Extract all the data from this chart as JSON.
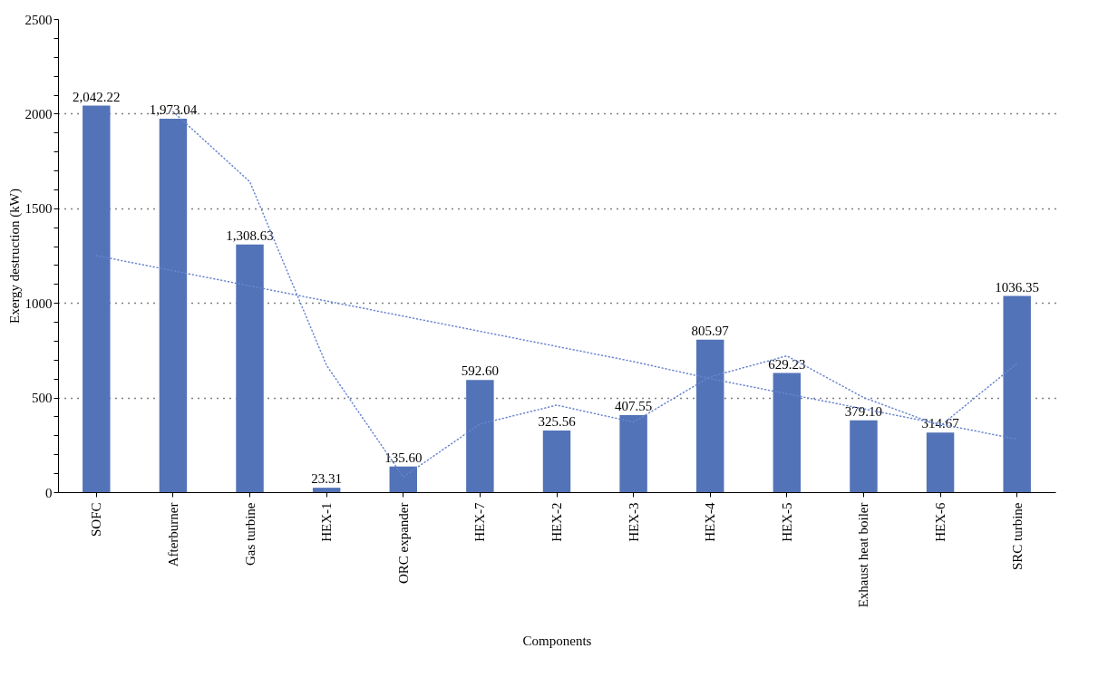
{
  "chart_data": {
    "type": "bar",
    "xlabel": "Components",
    "ylabel": "Exergy destruction (kW)",
    "categories": [
      "SOFC",
      "Afterburner",
      "Gas turbine",
      "HEX-1",
      "ORC expander",
      "HEX-7",
      "HEX-2",
      "HEX-3",
      "HEX-4",
      "HEX-5",
      "Exhaust heat boiler",
      "HEX-6",
      "SRC turbine"
    ],
    "series": [
      {
        "color": "#5273b8",
        "values": [
          2042.22,
          1973.04,
          1308.63,
          23.31,
          135.6,
          592.6,
          325.56,
          407.55,
          805.97,
          629.23,
          379.1,
          314.67,
          1036.35
        ],
        "value_labels": [
          "2,042.22",
          "1,973.04",
          "1,308.63",
          "23.31",
          "135.60",
          "592.60",
          "325.56",
          "407.55",
          "805.97",
          "629.23",
          "379.10",
          "314.67",
          "1036.35"
        ]
      },
      {
        "type": "line",
        "color": "#6a85d0",
        "line_style": "dotted",
        "values": [
          null,
          2010,
          1640,
          670,
          80,
          360,
          460,
          370,
          610,
          720,
          500,
          350,
          680
        ]
      },
      {
        "type": "line",
        "color": "#6a85d0",
        "line_style": "dotted",
        "values": [
          1250,
          1170,
          1090,
          1010,
          930,
          850,
          770,
          690,
          600,
          520,
          440,
          360,
          280
        ]
      }
    ],
    "ylim": [
      0,
      2500
    ],
    "yticks": [
      0,
      {
        "value": 100,
        "label": null
      },
      {
        "value": 200,
        "label": null
      },
      {
        "value": 300,
        "label": null
      },
      {
        "value": 400,
        "label": null
      },
      500,
      {
        "value": 600,
        "label": null
      },
      {
        "value": 700,
        "label": null
      },
      {
        "value": 800,
        "label": null
      },
      {
        "value": 900,
        "label": null
      },
      1000,
      {
        "value": 1100,
        "label": null
      },
      {
        "value": 1200,
        "label": null
      },
      {
        "value": 1300,
        "label": null
      },
      {
        "value": 1400,
        "label": null
      },
      1500,
      {
        "value": 1600,
        "label": null
      },
      {
        "value": 1700,
        "label": null
      },
      {
        "value": 1800,
        "label": null
      },
      {
        "value": 1900,
        "label": null
      },
      2000,
      {
        "value": 2100,
        "label": null
      },
      {
        "value": 2200,
        "label": null
      },
      {
        "value": 2300,
        "label": null
      },
      {
        "value": 2400,
        "label": null
      },
      2500
    ],
    "grid": "y"
  }
}
